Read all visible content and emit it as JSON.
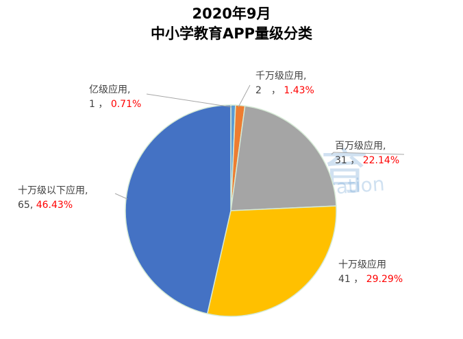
{
  "chart_data": {
    "type": "pie",
    "title": "2020年9月",
    "subtitle": "中小学教育APP量级分类",
    "slices": [
      {
        "name": "亿级应用",
        "value": 1,
        "percent": "0.71%",
        "color": "#5B9BD5"
      },
      {
        "name": "千万级应用",
        "value": 2,
        "percent": "1.43%",
        "color": "#ED7D31"
      },
      {
        "name": "百万级应用",
        "value": 31,
        "percent": "22.14%",
        "color": "#A5A5A5"
      },
      {
        "name": "十万级应用",
        "value": 41,
        "percent": "29.29%",
        "color": "#FFC000"
      },
      {
        "name": "十万级以下应用",
        "value": 65,
        "percent": "46.43%",
        "color": "#4472C4"
      }
    ]
  },
  "watermark": {
    "cn": "蓝鲸教育",
    "en": "Blue Whale Education"
  }
}
